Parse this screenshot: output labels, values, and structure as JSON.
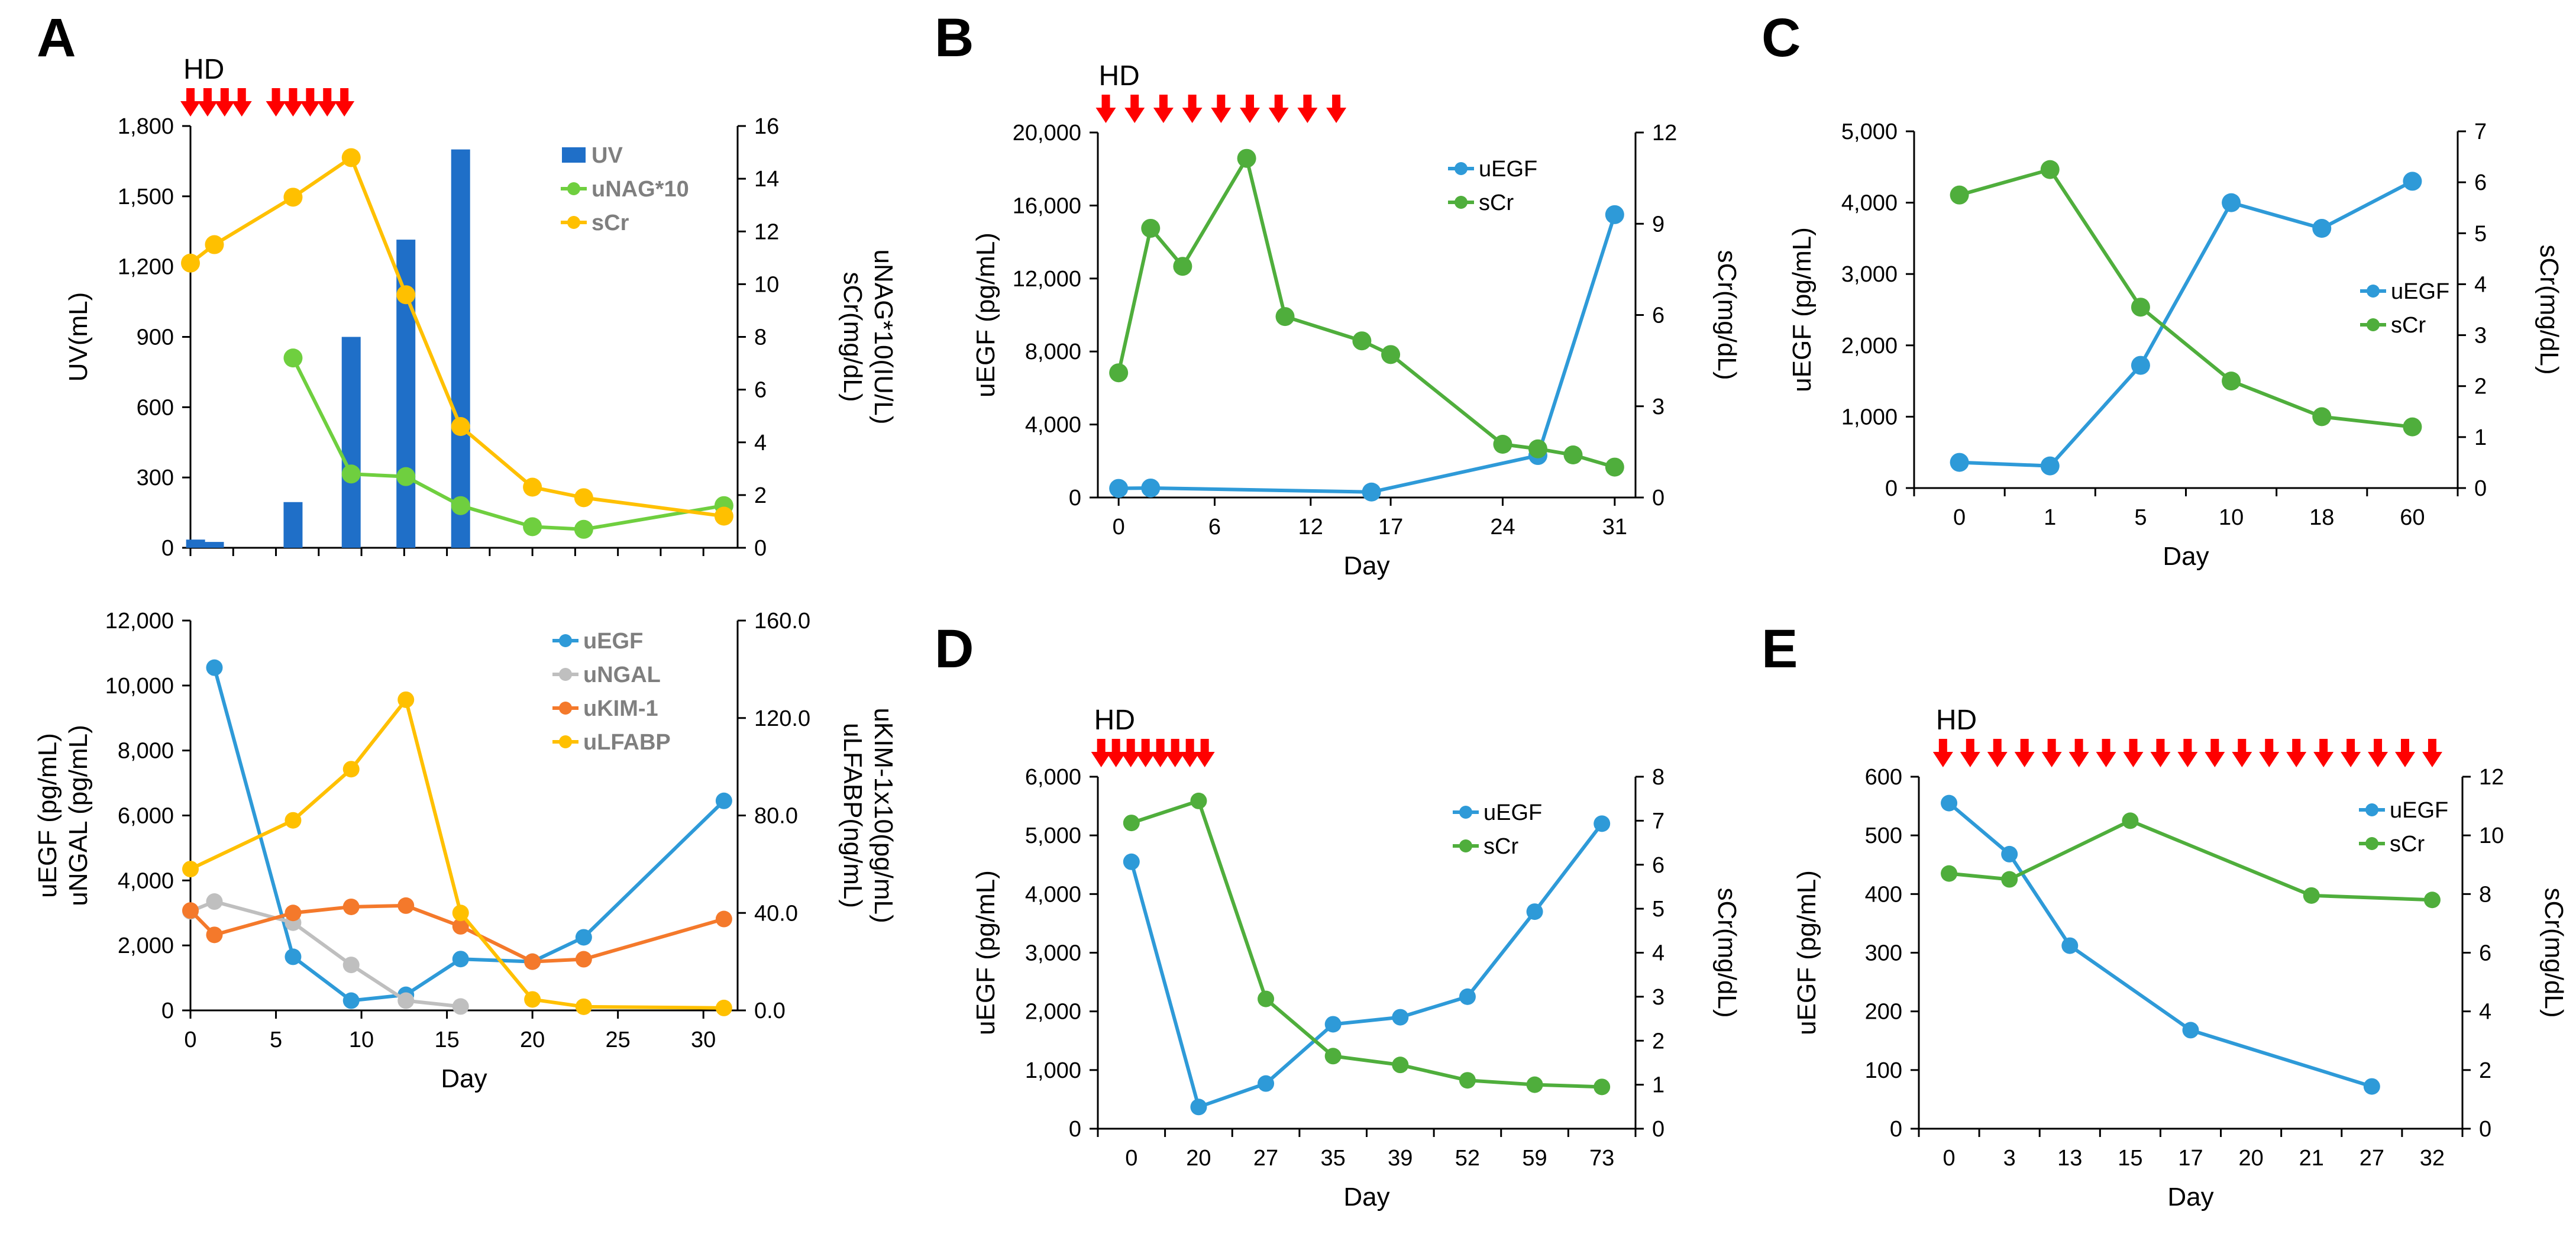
{
  "figure": {
    "colors": {
      "blue": "#2e9ad8",
      "green": "#4fae3c",
      "orange": "#f4792b",
      "gray": "#bfbfbf",
      "yellow": "#ffc000",
      "bar": "#1f6fc8",
      "lime": "#6fcf3f",
      "red": "#ff0000"
    },
    "hd_label": "HD"
  },
  "chart_data": [
    {
      "id": "A-top",
      "panel": "A",
      "type": "bar+line",
      "xlabel": "",
      "ylabel_left": "UV(mL)",
      "ylabel_right": [
        "uNAG*10(IU/L)",
        "sCr(mg/dL)"
      ],
      "ylim_left": [
        0,
        1800
      ],
      "ylim_right": [
        0,
        16
      ],
      "yticks_left": [
        "0",
        "300",
        "600",
        "900",
        "1,200",
        "1,500",
        "1,800"
      ],
      "yticks_right": [
        "0",
        "2",
        "4",
        "6",
        "8",
        "10",
        "12",
        "14",
        "16"
      ],
      "xlim": [
        0,
        32
      ],
      "hd_arrow_days": [
        0,
        1,
        2,
        3,
        5,
        6,
        7,
        8,
        9
      ],
      "bars": {
        "name": "UV",
        "x": [
          0.3,
          1.4,
          6,
          9.4,
          12.6,
          15.8
        ],
        "values": [
          35,
          25,
          195,
          900,
          1315,
          1700
        ]
      },
      "series": [
        {
          "name": "uNAG*10",
          "color": "lime",
          "x": [
            6,
            9.4,
            12.6,
            15.8,
            20,
            23,
            31.2
          ],
          "values": [
            7.2,
            2.8,
            2.7,
            1.6,
            0.8,
            0.7,
            1.6
          ]
        },
        {
          "name": "sCr",
          "color": "yellow",
          "x": [
            0,
            1.4,
            6,
            9.4,
            12.6,
            15.8,
            20,
            23,
            31.2
          ],
          "values": [
            10.8,
            11.5,
            13.3,
            14.8,
            9.6,
            4.6,
            2.3,
            1.9,
            1.2
          ]
        }
      ]
    },
    {
      "id": "A-bottom",
      "panel": "A",
      "type": "line",
      "xlabel": "Day",
      "ylabel_left": [
        "uEGF (pg/mL)",
        "uNGAL (pg/mL)"
      ],
      "ylabel_right": [
        "uKIM-1x10(pg/mL)",
        "uLFABP(ng/mL)"
      ],
      "ylim_left": [
        0,
        12000
      ],
      "ylim_right": [
        0,
        160
      ],
      "yticks_left": [
        "0",
        "2,000",
        "4,000",
        "6,000",
        "8,000",
        "10,000",
        "12,000"
      ],
      "yticks_right": [
        "0.0",
        "40.0",
        "80.0",
        "120.0",
        "160.0"
      ],
      "xlim": [
        0,
        32
      ],
      "xticks": [
        "0",
        "5",
        "10",
        "15",
        "20",
        "25",
        "30"
      ],
      "xtick_values": [
        0,
        5,
        10,
        15,
        20,
        25,
        30
      ],
      "series": [
        {
          "name": "uEGF",
          "color": "blue",
          "axis": "left",
          "x": [
            1.4,
            6,
            9.4,
            12.6,
            15.8,
            20,
            23,
            31.2
          ],
          "values": [
            10550,
            1650,
            300,
            480,
            1580,
            1500,
            2250,
            6450
          ]
        },
        {
          "name": "uNGAL",
          "color": "gray",
          "axis": "left",
          "x": [
            0,
            1.4,
            6,
            9.4,
            12.6,
            15.8
          ],
          "values": [
            3050,
            3350,
            2700,
            1400,
            300,
            120
          ]
        },
        {
          "name": "uKIM-1",
          "color": "orange",
          "axis": "right",
          "x": [
            0,
            1.4,
            6,
            9.4,
            12.6,
            15.8,
            20,
            23,
            31.2
          ],
          "values": [
            41,
            31,
            40,
            42.5,
            43,
            34.5,
            20,
            21,
            37.5
          ]
        },
        {
          "name": "uLFABP",
          "color": "yellow",
          "axis": "right",
          "x": [
            0,
            6,
            9.4,
            12.6,
            15.8,
            20,
            23,
            31.2
          ],
          "values": [
            58,
            78,
            99,
            127.5,
            40,
            4.5,
            1.5,
            1
          ]
        }
      ]
    },
    {
      "id": "B",
      "panel": "B",
      "type": "line",
      "xlabel": "Day",
      "ylabel_left": "uEGF (pg/mL)",
      "ylabel_right": "sCr(mg/dL)",
      "ylim_left": [
        0,
        20000
      ],
      "ylim_right": [
        0,
        12
      ],
      "yticks_left": [
        "0",
        "4,000",
        "8,000",
        "12,000",
        "16,000",
        "20,000"
      ],
      "yticks_right": [
        "0",
        "3",
        "6",
        "9",
        "12"
      ],
      "xlim": [
        -1.3,
        32.3
      ],
      "xticks": [
        "0",
        "6",
        "12",
        "17",
        "24",
        "31"
      ],
      "xtick_values": [
        0,
        6,
        12,
        17,
        24,
        31
      ],
      "hd_arrow_days": [
        -0.8,
        1,
        2.8,
        4.6,
        6.4,
        8.2,
        10,
        11.8,
        13.6
      ],
      "series": [
        {
          "name": "uEGF",
          "color": "blue",
          "x": [
            0,
            2,
            15.8,
            26.2,
            31
          ],
          "values": [
            500,
            520,
            300,
            2300,
            15500
          ]
        },
        {
          "name": "sCr",
          "color": "green",
          "x": [
            0,
            2,
            4,
            8,
            10.4,
            15.2,
            17,
            24,
            26.2,
            28.4,
            31
          ],
          "values": [
            4.1,
            8.85,
            7.6,
            11.15,
            5.95,
            5.15,
            4.7,
            1.75,
            1.6,
            1.4,
            1.0
          ]
        }
      ]
    },
    {
      "id": "C",
      "panel": "C",
      "type": "line",
      "xlabel": "Day",
      "ylabel_left": "uEGF (pg/mL)",
      "ylabel_right": "sCr(mg/dL)",
      "ylim_left": [
        0,
        5000
      ],
      "ylim_right": [
        0,
        7
      ],
      "yticks_left": [
        "0",
        "1,000",
        "2,000",
        "3,000",
        "4,000",
        "5,000"
      ],
      "yticks_right": [
        "0",
        "1",
        "2",
        "3",
        "4",
        "5",
        "6",
        "7"
      ],
      "categories": [
        "0",
        "1",
        "5",
        "10",
        "18",
        "60"
      ],
      "series": [
        {
          "name": "uEGF",
          "color": "blue",
          "values": [
            360,
            310,
            1720,
            4000,
            3640,
            4300
          ]
        },
        {
          "name": "sCr",
          "color": "green",
          "values": [
            5.75,
            6.25,
            3.55,
            2.1,
            1.4,
            1.2
          ]
        }
      ]
    },
    {
      "id": "D",
      "panel": "D",
      "type": "line",
      "xlabel": "Day",
      "ylabel_left": "uEGF (pg/mL)",
      "ylabel_right": "sCr(mg/dL)",
      "ylim_left": [
        0,
        6000
      ],
      "ylim_right": [
        0,
        8
      ],
      "yticks_left": [
        "0",
        "1,000",
        "2,000",
        "3,000",
        "4,000",
        "5,000",
        "6,000"
      ],
      "yticks_right": [
        "0",
        "1",
        "2",
        "3",
        "4",
        "5",
        "6",
        "7",
        "8"
      ],
      "categories": [
        "0",
        "20",
        "27",
        "35",
        "39",
        "52",
        "59",
        "73"
      ],
      "hd_arrow_positions": [
        -0.45,
        -0.23,
        -0.01,
        0.21,
        0.43,
        0.65,
        0.87,
        1.09
      ],
      "series": [
        {
          "name": "uEGF",
          "color": "blue",
          "values": [
            4550,
            370,
            770,
            1780,
            1900,
            2250,
            3700,
            5200
          ]
        },
        {
          "name": "sCr",
          "color": "green",
          "values": [
            6.95,
            7.45,
            2.95,
            1.65,
            1.45,
            1.1,
            1.0,
            0.95
          ]
        }
      ]
    },
    {
      "id": "E",
      "panel": "E",
      "type": "line",
      "xlabel": "Day",
      "ylabel_left": "uEGF (pg/mL)",
      "ylabel_right": "sCr(mg/dL)",
      "ylim_left": [
        0,
        600
      ],
      "ylim_right": [
        0,
        12
      ],
      "yticks_left": [
        "0",
        "100",
        "200",
        "300",
        "400",
        "500",
        "600"
      ],
      "yticks_right": [
        "0",
        "2",
        "4",
        "6",
        "8",
        "10",
        "12"
      ],
      "categories": [
        "0",
        "3",
        "13",
        "15",
        "17",
        "20",
        "21",
        "27",
        "32"
      ],
      "hd_arrow_positions": [
        -0.1,
        0.35,
        0.8,
        1.25,
        1.7,
        2.15,
        2.6,
        3.05,
        3.5,
        3.95,
        4.4,
        4.85,
        5.3,
        5.75,
        6.2,
        6.65,
        7.1,
        7.55,
        8.0
      ],
      "series": [
        {
          "name": "uEGF",
          "color": "blue",
          "x": [
            0,
            1,
            2,
            4,
            7
          ],
          "values": [
            555,
            468,
            312,
            168,
            72
          ]
        },
        {
          "name": "sCr",
          "color": "green",
          "x": [
            0,
            1,
            3,
            6,
            8
          ],
          "values": [
            8.7,
            8.5,
            10.5,
            7.95,
            7.8
          ]
        }
      ]
    }
  ],
  "panels": {
    "A": "A",
    "B": "B",
    "C": "C",
    "D": "D",
    "E": "E"
  }
}
